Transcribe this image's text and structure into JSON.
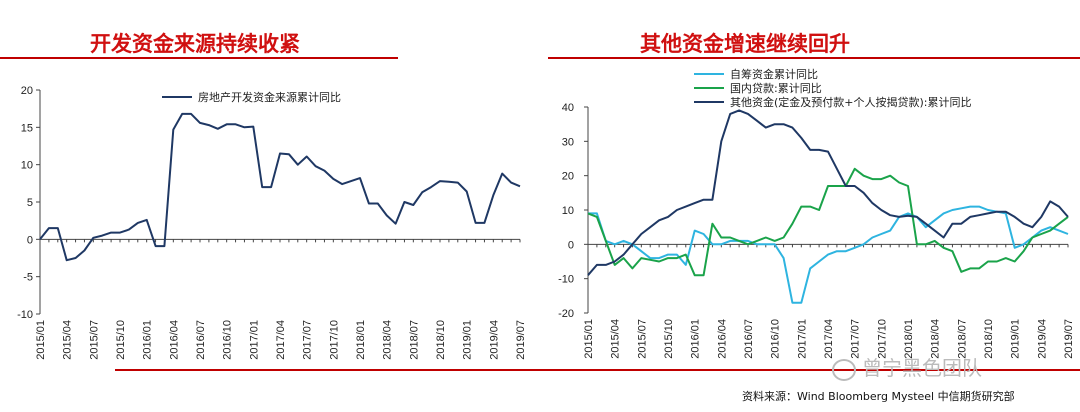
{
  "left_panel": {
    "title": "开发资金来源持续收紧"
  },
  "right_panel": {
    "title": "其他资金增速继续回升"
  },
  "watermark": "曾宁黑色团队",
  "source": "资料来源：Wind Bloomberg Mysteel 中信期货研究部",
  "chart_data": [
    {
      "type": "line",
      "title": "开发资金来源持续收紧",
      "x": [
        "2015/01",
        "2015/02",
        "2015/03",
        "2015/04",
        "2015/05",
        "2015/06",
        "2015/07",
        "2015/08",
        "2015/09",
        "2015/10",
        "2015/11",
        "2015/12",
        "2016/01",
        "2016/02",
        "2016/03",
        "2016/04",
        "2016/05",
        "2016/06",
        "2016/07",
        "2016/08",
        "2016/09",
        "2016/10",
        "2016/11",
        "2016/12",
        "2017/01",
        "2017/02",
        "2017/03",
        "2017/04",
        "2017/05",
        "2017/06",
        "2017/07",
        "2017/08",
        "2017/09",
        "2017/10",
        "2017/11",
        "2017/12",
        "2018/01",
        "2018/02",
        "2018/03",
        "2018/04",
        "2018/05",
        "2018/06",
        "2018/07",
        "2018/08",
        "2018/09",
        "2018/10",
        "2018/11",
        "2018/12",
        "2019/01",
        "2019/02",
        "2019/03",
        "2019/04",
        "2019/05",
        "2019/06",
        "2019/07"
      ],
      "x_tick_labels": [
        "2015/01",
        "2015/04",
        "2015/07",
        "2015/10",
        "2016/01",
        "2016/04",
        "2016/07",
        "2016/10",
        "2017/01",
        "2017/04",
        "2017/07",
        "2017/10",
        "2018/01",
        "2018/04",
        "2018/07",
        "2018/10",
        "2019/01",
        "2019/04",
        "2019/07"
      ],
      "series": [
        {
          "name": "房地产开发资金来源累计同比",
          "color": "#1f3864",
          "values": [
            0,
            1.5,
            1.5,
            -2.8,
            -2.5,
            -1.5,
            0.2,
            0.5,
            0.9,
            0.9,
            1.3,
            2.2,
            2.6,
            -0.9,
            -0.9,
            14.7,
            16.8,
            16.8,
            15.6,
            15.3,
            14.8,
            15.4,
            15.4,
            15.0,
            15.1,
            7.0,
            7.0,
            11.5,
            11.4,
            10.0,
            11.1,
            9.8,
            9.2,
            8.1,
            7.4,
            7.8,
            8.2,
            4.8,
            4.8,
            3.2,
            2.1,
            5.0,
            4.6,
            6.3,
            7.0,
            7.8,
            7.7,
            7.6,
            6.4,
            2.2,
            2.2,
            5.9,
            8.8,
            7.6,
            7.1
          ]
        }
      ],
      "ylim": [
        -10,
        20
      ],
      "yticks": [
        -10,
        -5,
        0,
        5,
        10,
        15,
        20
      ],
      "legend_position": "top-left"
    },
    {
      "type": "line",
      "title": "其他资金增速继续回升",
      "x": [
        "2015/01",
        "2015/02",
        "2015/03",
        "2015/04",
        "2015/05",
        "2015/06",
        "2015/07",
        "2015/08",
        "2015/09",
        "2015/10",
        "2015/11",
        "2015/12",
        "2016/01",
        "2016/02",
        "2016/03",
        "2016/04",
        "2016/05",
        "2016/06",
        "2016/07",
        "2016/08",
        "2016/09",
        "2016/10",
        "2016/11",
        "2016/12",
        "2017/01",
        "2017/02",
        "2017/03",
        "2017/04",
        "2017/05",
        "2017/06",
        "2017/07",
        "2017/08",
        "2017/09",
        "2017/10",
        "2017/11",
        "2017/12",
        "2018/01",
        "2018/02",
        "2018/03",
        "2018/04",
        "2018/05",
        "2018/06",
        "2018/07",
        "2018/08",
        "2018/09",
        "2018/10",
        "2018/11",
        "2018/12",
        "2019/01",
        "2019/02",
        "2019/03",
        "2019/04",
        "2019/05",
        "2019/06",
        "2019/07"
      ],
      "x_tick_labels": [
        "2015/01",
        "2015/04",
        "2015/07",
        "2015/10",
        "2016/01",
        "2016/04",
        "2016/07",
        "2016/10",
        "2017/01",
        "2017/04",
        "2017/07",
        "2017/10",
        "2018/01",
        "2018/04",
        "2018/07",
        "2018/10",
        "2019/01",
        "2019/04",
        "2019/07"
      ],
      "series": [
        {
          "name": "自筹资金累计同比",
          "color": "#2eb4e0",
          "values": [
            9,
            9,
            1,
            0,
            1,
            0,
            -2,
            -4,
            -4,
            -3,
            -3,
            -6,
            4,
            3,
            0,
            0,
            1,
            1,
            1,
            0,
            0,
            0,
            -4,
            -17,
            -17,
            -7,
            -5,
            -3,
            -2,
            -2,
            -1,
            0,
            2,
            3,
            4,
            8,
            9,
            8,
            5,
            7,
            9,
            10,
            10.5,
            11,
            11,
            10,
            9.5,
            9,
            -1,
            0,
            2,
            4,
            5,
            4,
            3
          ],
          "legend_position": "top"
        },
        {
          "name": "国内贷款:累计同比",
          "color": "#1aa34a",
          "values": [
            9,
            8,
            1,
            -6,
            -4,
            -7,
            -4,
            -4.5,
            -5,
            -4,
            -4,
            -3,
            -9,
            -9,
            6,
            2,
            2,
            1,
            0,
            1,
            2,
            1,
            2,
            6,
            11,
            11,
            10,
            17,
            17,
            17,
            22,
            20,
            19,
            19,
            20,
            18,
            17,
            0,
            0,
            1,
            -1,
            -2,
            -8,
            -7,
            -7,
            -5,
            -5,
            -4,
            -5,
            -2,
            2,
            3,
            4,
            6,
            8
          ],
          "legend_position": "top"
        },
        {
          "name": "其他资金(定金及预付款+个人按揭贷款):累计同比",
          "color": "#1f3864",
          "values": [
            -9,
            -6,
            -6,
            -5,
            -3,
            0,
            3,
            5,
            7,
            8,
            10,
            11,
            12,
            13,
            13,
            30,
            38,
            39,
            38,
            36,
            34,
            35,
            35,
            34,
            31,
            27.5,
            27.5,
            27,
            22,
            17,
            17,
            15,
            12,
            10,
            8.5,
            8,
            8.3,
            8,
            6,
            4,
            2,
            6,
            6,
            8,
            8.5,
            9,
            9.5,
            9.5,
            8,
            6,
            5,
            8,
            12.5,
            11,
            8
          ]
        }
      ],
      "ylim": [
        -20,
        40
      ],
      "yticks": [
        -20,
        -10,
        0,
        10,
        20,
        30,
        40
      ],
      "legend_position": "top"
    }
  ]
}
